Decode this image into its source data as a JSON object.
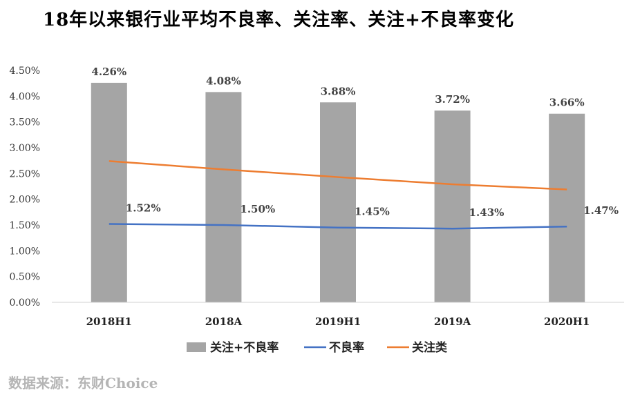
{
  "chart_data": {
    "type": "bar",
    "title": "18年以来银行业平均不良率、关注率、关注+不良率变化",
    "categories": [
      "2018H1",
      "2018A",
      "2019H1",
      "2019A",
      "2020H1"
    ],
    "ylim": [
      0,
      4.5
    ],
    "yticks": [
      "0.00%",
      "0.50%",
      "1.00%",
      "1.50%",
      "2.00%",
      "2.50%",
      "3.00%",
      "3.50%",
      "4.00%",
      "4.50%"
    ],
    "ytick_values": [
      0,
      0.5,
      1.0,
      1.5,
      2.0,
      2.5,
      3.0,
      3.5,
      4.0,
      4.5
    ],
    "series": [
      {
        "name": "关注+不良率",
        "kind": "bar",
        "color": "#a5a5a5",
        "values": [
          4.26,
          4.08,
          3.88,
          3.72,
          3.66
        ],
        "labels": [
          "4.26%",
          "4.08%",
          "3.88%",
          "3.72%",
          "3.66%"
        ]
      },
      {
        "name": "不良率",
        "kind": "line",
        "color": "#4472c4",
        "values": [
          1.52,
          1.5,
          1.45,
          1.43,
          1.47
        ],
        "labels": [
          "1.52%",
          "1.50%",
          "1.45%",
          "1.43%",
          "1.47%"
        ]
      },
      {
        "name": "关注类",
        "kind": "line",
        "color": "#ed7d31",
        "values": [
          2.74,
          2.58,
          2.43,
          2.29,
          2.19
        ]
      }
    ],
    "legend_position": "bottom",
    "grid": false
  },
  "source": "数据来源：东财Choice"
}
